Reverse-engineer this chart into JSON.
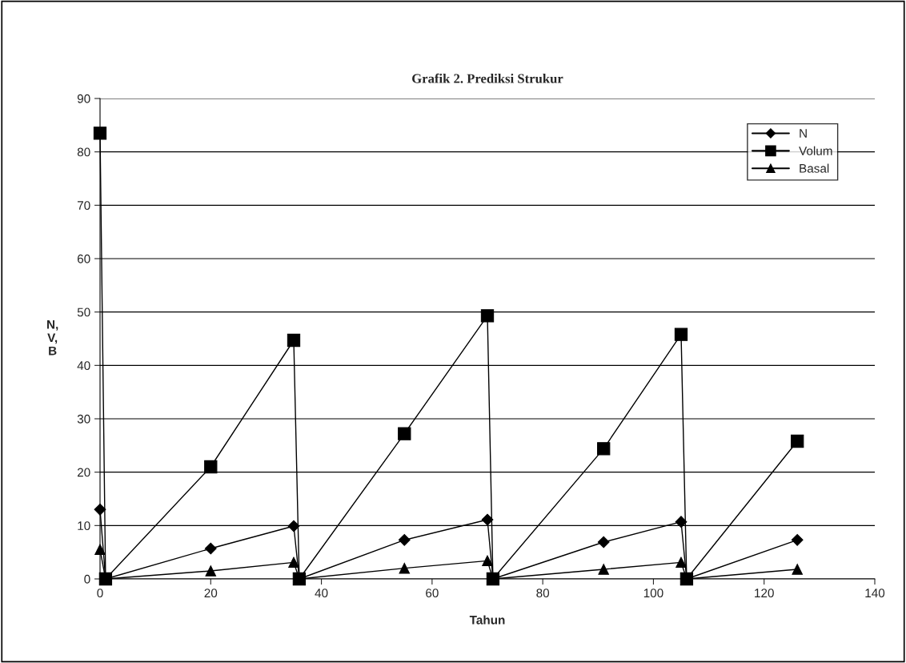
{
  "chart_data": {
    "type": "line",
    "title": "Grafik 2. Prediksi Strukur",
    "xlabel": "Tahun",
    "ylabel": "N,\nV,\nB",
    "x": [
      0,
      1,
      20,
      35,
      36,
      55,
      70,
      71,
      91,
      105,
      106,
      126
    ],
    "series": [
      {
        "name": "N",
        "color": "#000000",
        "marker": "diamond",
        "values": [
          13,
          0,
          5.7,
          9.9,
          0,
          7.3,
          11.1,
          0,
          6.9,
          10.7,
          0,
          7.3
        ]
      },
      {
        "name": "Volum",
        "color": "#000000",
        "marker": "square",
        "values": [
          83.5,
          0,
          21,
          44.7,
          0,
          27.2,
          49.3,
          0,
          24.4,
          45.8,
          0,
          25.8
        ]
      },
      {
        "name": "Basal",
        "color": "#000000",
        "marker": "triangle",
        "values": [
          5.5,
          0,
          1.5,
          3.1,
          0,
          2,
          3.4,
          0,
          1.8,
          3.1,
          0,
          1.8
        ]
      }
    ],
    "xlim": [
      0,
      140
    ],
    "xticks": [
      0,
      20,
      40,
      60,
      80,
      100,
      120,
      140
    ],
    "ylim": [
      0,
      90
    ],
    "yticks": [
      0,
      10,
      20,
      30,
      40,
      50,
      60,
      70,
      80,
      90
    ],
    "grid": "y",
    "legend": "top right",
    "line_style": "solid"
  }
}
